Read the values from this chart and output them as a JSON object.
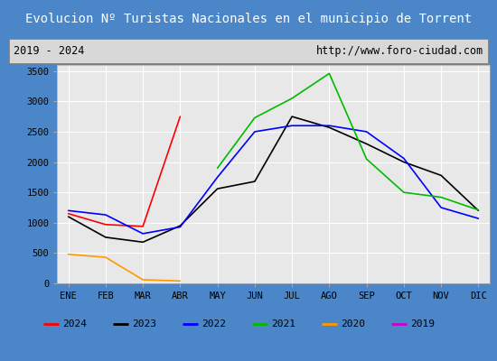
{
  "title": "Evolucion Nº Turistas Nacionales en el municipio de Torrent",
  "subtitle_left": "2019 - 2024",
  "subtitle_right": "http://www.foro-ciudad.com",
  "months": [
    "ENE",
    "FEB",
    "MAR",
    "ABR",
    "MAY",
    "JUN",
    "JUL",
    "AGO",
    "SEP",
    "OCT",
    "NOV",
    "DIC"
  ],
  "series": {
    "2024": {
      "color": "#ff0000",
      "data": [
        1150,
        970,
        940,
        2750,
        null,
        null,
        null,
        null,
        null,
        null,
        null,
        null
      ]
    },
    "2023": {
      "color": "#000000",
      "data": [
        1100,
        760,
        680,
        950,
        1560,
        1680,
        2750,
        2570,
        2300,
        2000,
        1780,
        1200
      ]
    },
    "2022": {
      "color": "#0000ff",
      "data": [
        1200,
        1130,
        820,
        930,
        1750,
        2500,
        2600,
        2600,
        2500,
        2060,
        1250,
        1070
      ]
    },
    "2021": {
      "color": "#00bb00",
      "data": [
        null,
        null,
        null,
        null,
        1900,
        2730,
        3050,
        3460,
        2050,
        1500,
        1420,
        1210
      ]
    },
    "2020": {
      "color": "#ff9900",
      "data": [
        480,
        430,
        60,
        40,
        null,
        null,
        null,
        null,
        null,
        null,
        null,
        null
      ]
    },
    "2019": {
      "color": "#cc00cc",
      "data": [
        null,
        null,
        null,
        null,
        null,
        null,
        null,
        null,
        null,
        null,
        null,
        null
      ]
    }
  },
  "ylim": [
    0,
    3600
  ],
  "yticks": [
    0,
    500,
    1000,
    1500,
    2000,
    2500,
    3000,
    3500
  ],
  "title_bg_color": "#4a86c8",
  "title_text_color": "#ffffff",
  "plot_bg_color": "#e8e8e8",
  "grid_color": "#ffffff",
  "outer_bg_color": "#4a86c8",
  "subtitle_bg_color": "#d8d8d8",
  "legend_bg_color": "#ffffff"
}
